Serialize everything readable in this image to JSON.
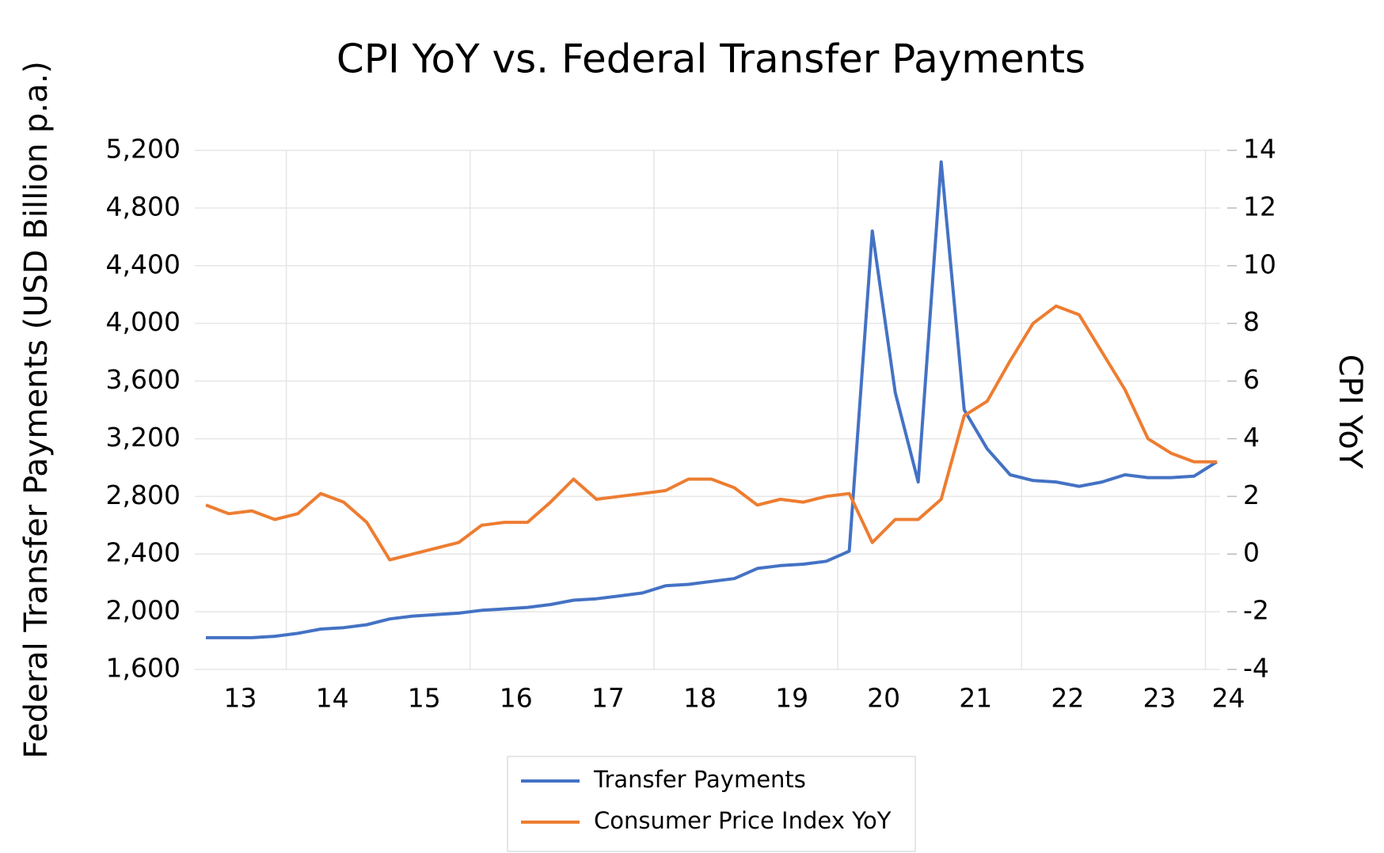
{
  "chart_data": {
    "type": "line",
    "title": "CPI YoY vs. Federal Transfer Payments",
    "ylabel": "Federal Transfer Payments (USD Billion p.a.)",
    "y2label": "CPI YoY",
    "categories": [
      null,
      "13",
      null,
      null,
      null,
      "14",
      null,
      null,
      null,
      "15",
      null,
      null,
      null,
      "16",
      null,
      null,
      null,
      "17",
      null,
      null,
      null,
      "18",
      null,
      null,
      null,
      "19",
      null,
      null,
      null,
      "20",
      null,
      null,
      null,
      "21",
      null,
      null,
      null,
      "22",
      null,
      null,
      null,
      "23",
      null,
      null,
      "24"
    ],
    "series": [
      {
        "name": "Transfer Payments",
        "color": "#4472c4",
        "values": [
          1820,
          1820,
          1820,
          1830,
          1850,
          1880,
          1890,
          1910,
          1950,
          1970,
          1980,
          1990,
          2010,
          2020,
          2030,
          2050,
          2080,
          2090,
          2110,
          2130,
          2180,
          2190,
          2210,
          2230,
          2300,
          2320,
          2330,
          2350,
          2420,
          4640,
          3520,
          2900,
          5120,
          3400,
          3130,
          2950,
          2910,
          2900,
          2870,
          2900,
          2950,
          2930,
          2930,
          2940,
          3040
        ]
      },
      {
        "name": "Consumer Price Index YoY",
        "color": "#ed7d31",
        "axis": "y2",
        "values": [
          1.7,
          1.4,
          1.5,
          1.2,
          1.4,
          2.1,
          1.8,
          1.1,
          -0.2,
          0.0,
          0.2,
          0.4,
          1.0,
          1.1,
          1.1,
          1.8,
          2.6,
          1.9,
          2.0,
          2.1,
          2.2,
          2.6,
          2.6,
          2.3,
          1.7,
          1.9,
          1.8,
          2.0,
          2.1,
          0.4,
          1.2,
          1.2,
          1.9,
          4.8,
          5.3,
          6.7,
          8.0,
          8.6,
          8.3,
          7.0,
          5.7,
          4.0,
          3.5,
          3.2,
          3.2
        ]
      }
    ],
    "ylim": [
      1600,
      5200
    ],
    "yticks": [
      {
        "value": 1600,
        "label": "1,600"
      },
      {
        "value": 2000,
        "label": "2,000"
      },
      {
        "value": 2400,
        "label": "2,400"
      },
      {
        "value": 2800,
        "label": "2,800"
      },
      {
        "value": 3200,
        "label": "3,200"
      },
      {
        "value": 3600,
        "label": "3,600"
      },
      {
        "value": 4000,
        "label": "4,000"
      },
      {
        "value": 4400,
        "label": "4,400"
      },
      {
        "value": 4800,
        "label": "4,800"
      },
      {
        "value": 5200,
        "label": "5,200"
      }
    ],
    "y2lim": [
      -4,
      14
    ],
    "y2ticks": [
      -4,
      -2,
      0,
      2,
      4,
      6,
      8,
      10,
      12,
      14
    ],
    "grid": true,
    "legend": "bottom"
  }
}
